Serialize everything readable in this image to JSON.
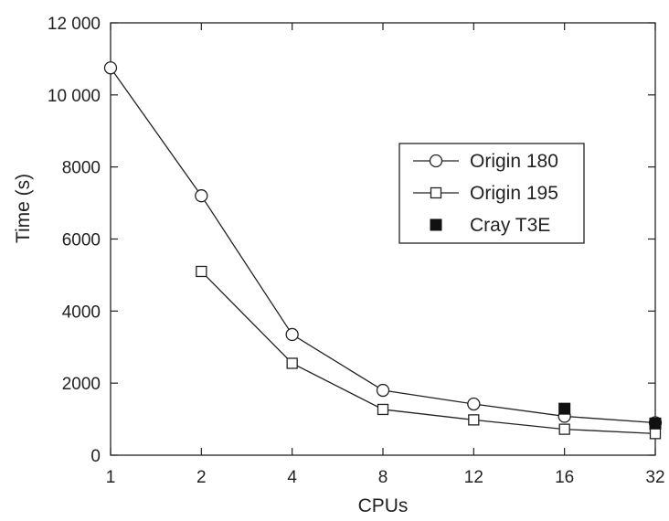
{
  "chart_data": {
    "type": "line",
    "title": "",
    "xlabel": "CPUs",
    "ylabel": "Time (s)",
    "categories": [
      "1",
      "2",
      "4",
      "8",
      "12",
      "16",
      "32"
    ],
    "yticks": [
      "0",
      "2000",
      "4000",
      "6000",
      "8000",
      "10 000",
      "12 000"
    ],
    "ylim": [
      0,
      12000
    ],
    "grid": false,
    "legend_position": "center-right",
    "series": [
      {
        "name": "Origin 180",
        "marker": "open-circle",
        "values": [
          10750,
          7200,
          3350,
          1800,
          1420,
          1080,
          900
        ]
      },
      {
        "name": "Origin 195",
        "marker": "open-square",
        "values": [
          null,
          5100,
          2550,
          1270,
          980,
          720,
          600
        ]
      },
      {
        "name": "Cray T3E",
        "marker": "filled-square",
        "values": [
          null,
          null,
          null,
          null,
          null,
          1290,
          880
        ]
      }
    ]
  }
}
